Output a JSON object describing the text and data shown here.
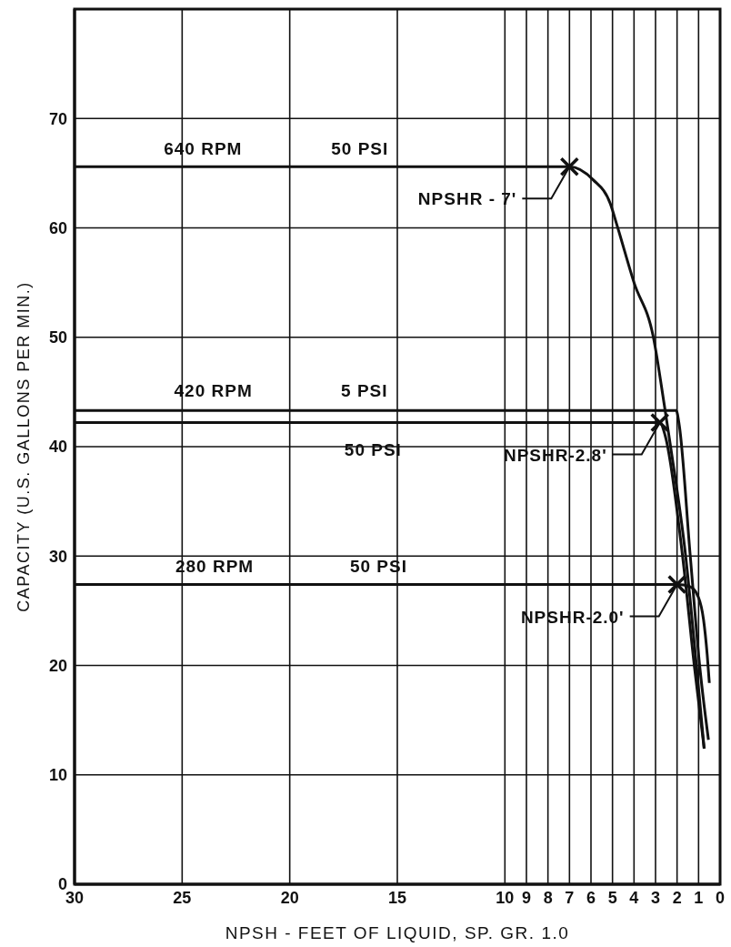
{
  "chart_data": {
    "type": "line",
    "xlabel": "NPSH - FEET OF LIQUID, SP. GR. 1.0",
    "ylabel": "CAPACITY (U.S. GALLONS PER MIN.)",
    "xlim": [
      30,
      0
    ],
    "xticks": [
      30,
      25,
      20,
      15,
      10,
      9,
      8,
      7,
      6,
      5,
      4,
      3,
      2,
      1,
      0
    ],
    "ylim": [
      0,
      80
    ],
    "yticks": [
      0,
      10,
      20,
      30,
      40,
      50,
      60,
      70
    ],
    "grid": true,
    "series": [
      {
        "color": "#111111",
        "marker": "none",
        "x": [
          30,
          7,
          5.9,
          5.1,
          4.8,
          4,
          3.1,
          2.6,
          2.3,
          1.6,
          1.1,
          0.74
        ],
        "values": [
          65.6,
          65.6,
          64.4,
          62.2,
          60.3,
          55,
          50,
          43.9,
          40,
          30,
          20,
          12.4
        ]
      },
      {
        "color": "#111111",
        "marker": "none",
        "x": [
          30,
          2.04,
          1.9,
          1.39,
          0.95,
          0.54
        ],
        "values": [
          43.3,
          43.3,
          42,
          30.1,
          20,
          13.2
        ]
      },
      {
        "color": "#111111",
        "marker": "none",
        "x": [
          30,
          2.8,
          2.55,
          1.75,
          1.2,
          0.74
        ],
        "values": [
          42.2,
          42.2,
          41,
          30.1,
          20,
          12.4
        ]
      },
      {
        "color": "#111111",
        "marker": "none",
        "x": [
          30,
          2,
          1.4,
          1,
          0.77,
          0.6,
          0.5
        ],
        "values": [
          27.4,
          27.4,
          27.2,
          26.2,
          24.2,
          21,
          18.4
        ]
      },
      {
        "type": "scatter",
        "color": "#111111",
        "marker": "cross",
        "x": [
          7,
          2.8,
          2
        ],
        "values": [
          65.6,
          42.2,
          27.4
        ]
      }
    ],
    "annotations": [
      "640 RPM",
      "50 PSI",
      {
        "text": "NPSHR - 7'",
        "x": 7,
        "y": 65.6
      },
      "420 RPM",
      "5 PSI",
      "50 PSI",
      {
        "text": "NPSHR-2.8'",
        "x": 2.8,
        "y": 42.2
      },
      "280 RPM",
      "50 PSI",
      {
        "text": "NPSHR-2.0'",
        "x": 2,
        "y": 27.4
      }
    ]
  }
}
